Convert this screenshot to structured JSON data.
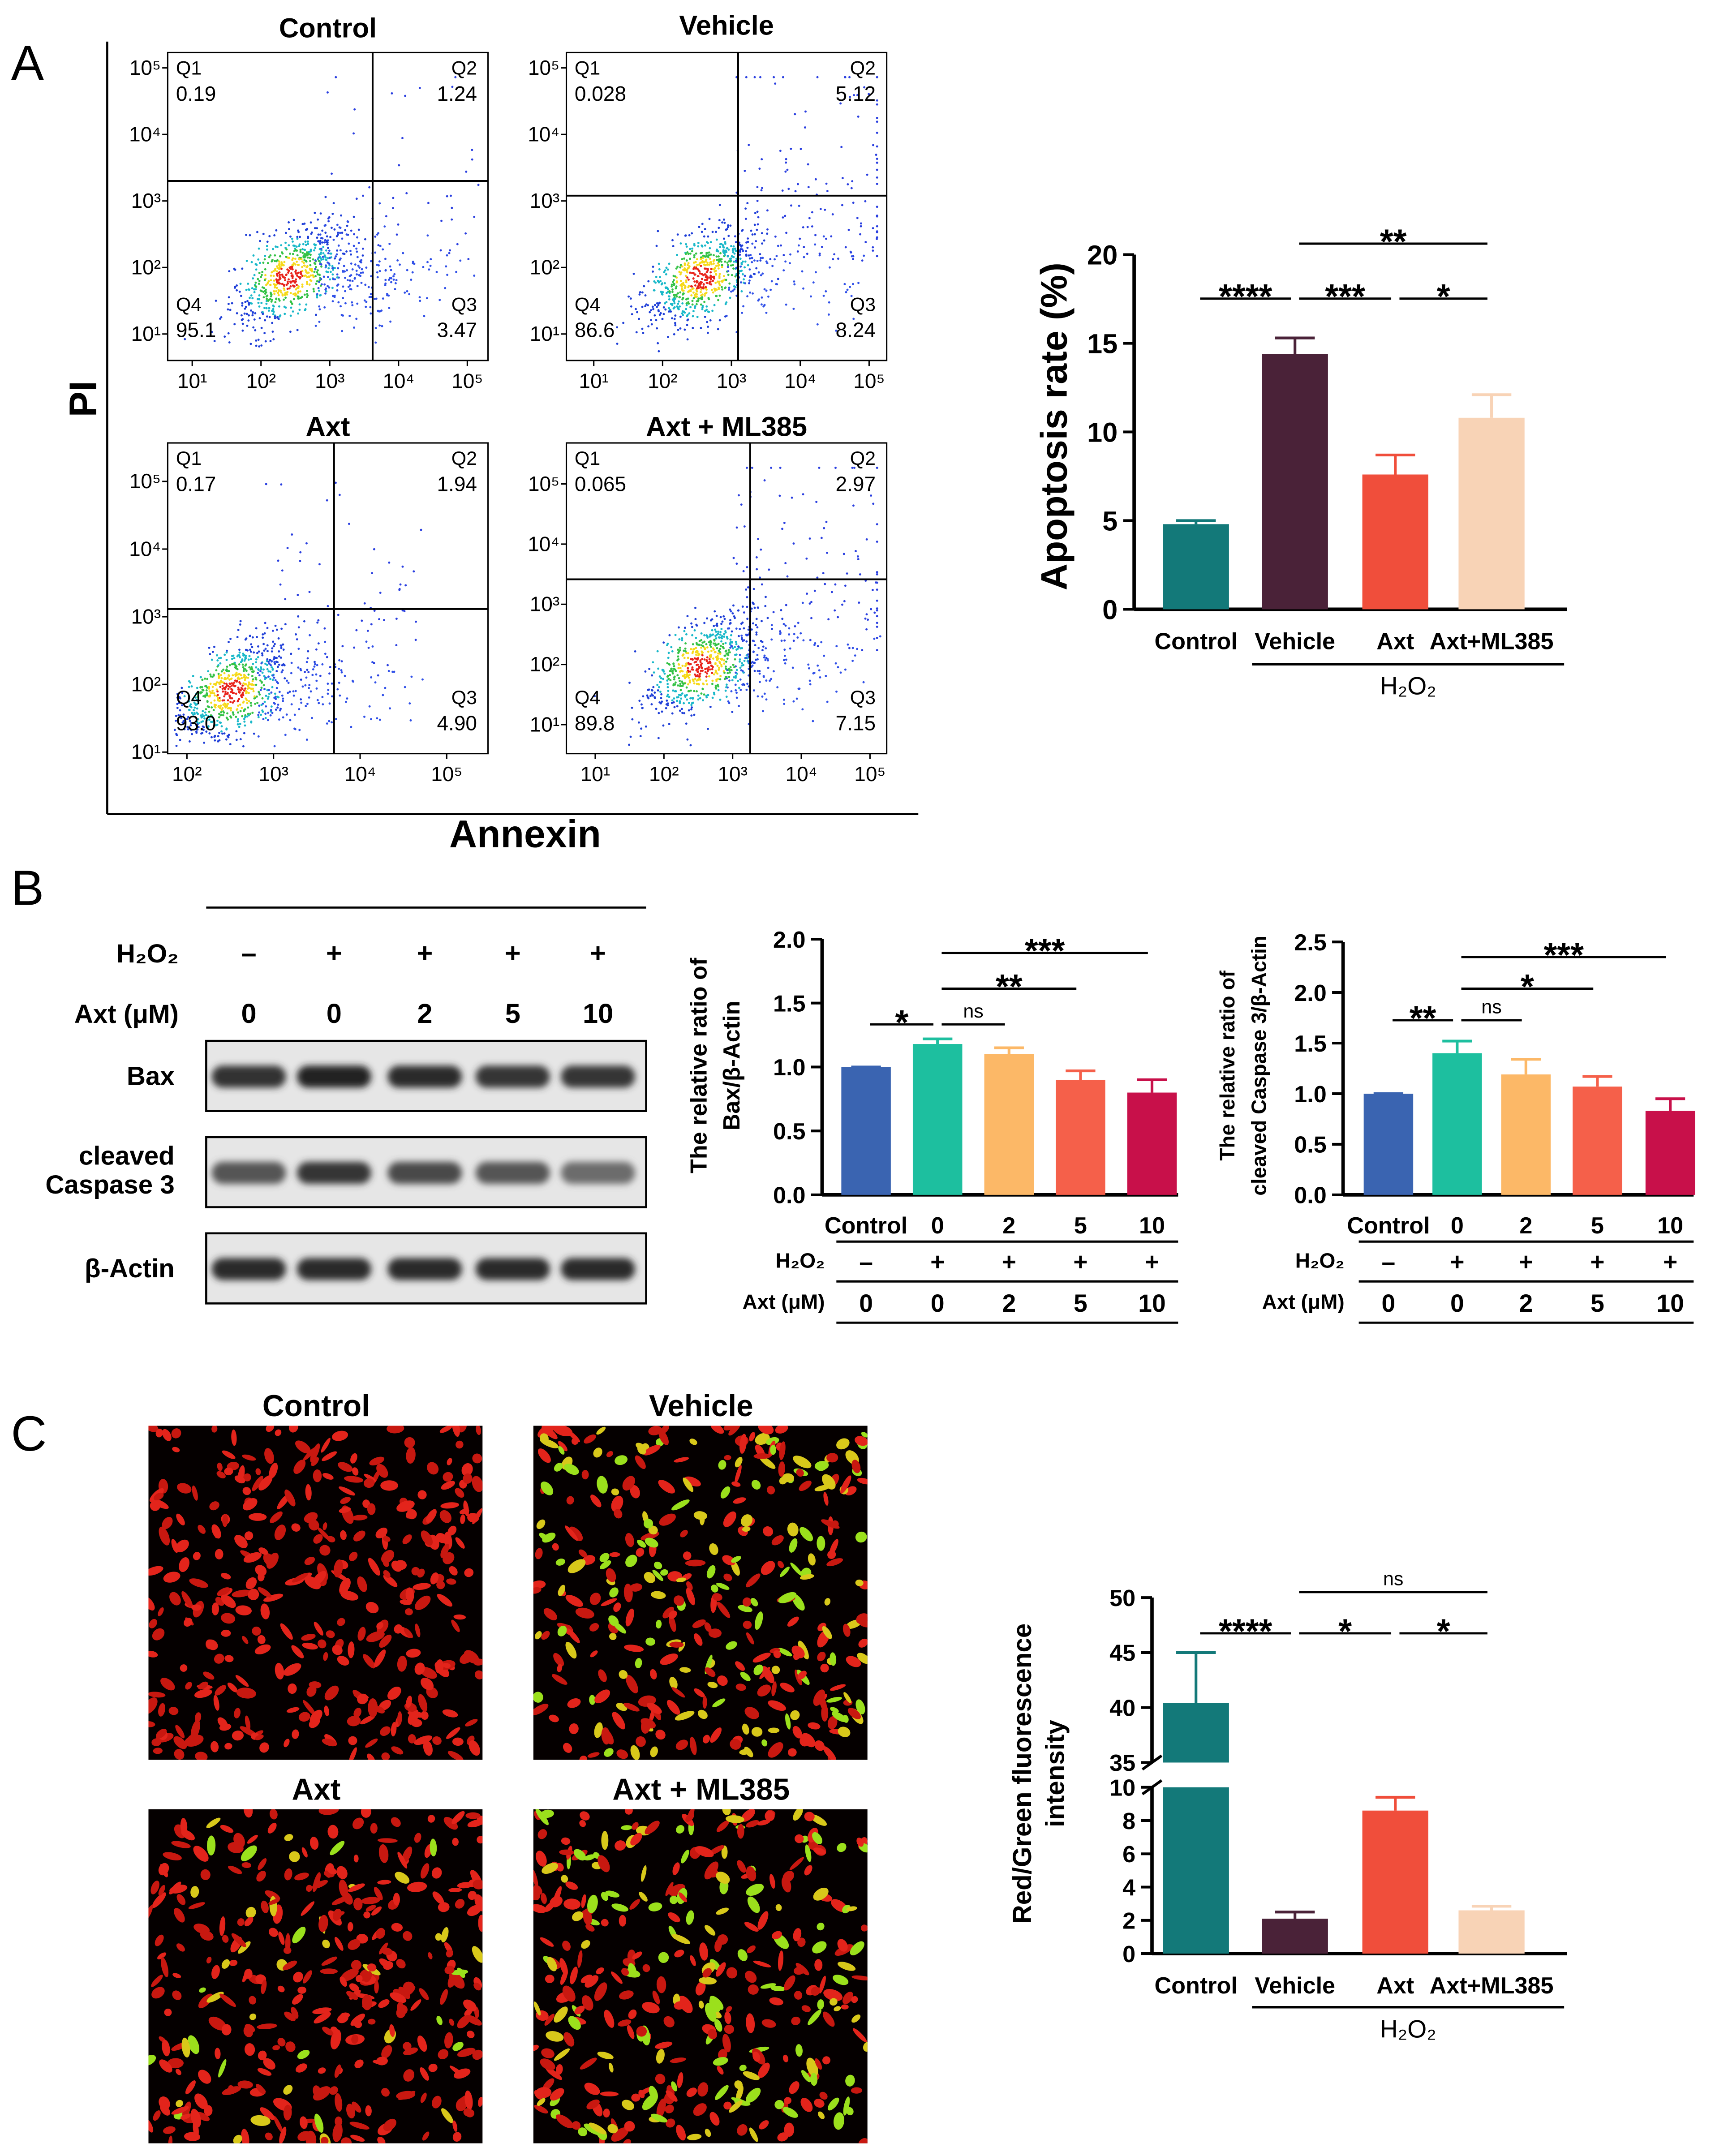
{
  "panels": [
    "A",
    "B",
    "C"
  ],
  "flow": {
    "ylabel": "PI",
    "xlabel": "Annexin",
    "plots": [
      {
        "title": "Control",
        "log": true,
        "xlim": [
          4.4,
          200000
        ],
        "ylim": [
          4,
          170000
        ],
        "xticks": [
          {
            "value": 10,
            "label": "10¹"
          },
          {
            "value": 100,
            "label": "10²"
          },
          {
            "value": 1000,
            "label": "10³"
          },
          {
            "value": 10000,
            "label": "10⁴"
          },
          {
            "value": 100000,
            "label": "10⁵"
          }
        ],
        "yticks": [
          {
            "value": 10,
            "label": "10¹"
          },
          {
            "value": 100,
            "label": "10²"
          },
          {
            "value": 1000,
            "label": "10³"
          },
          {
            "value": 10000,
            "label": "10⁴"
          },
          {
            "value": 100000,
            "label": "10⁵"
          }
        ],
        "gate": [
          4200,
          2000
        ],
        "quadrants": [
          {
            "name": "Q1",
            "value": "0.19"
          },
          {
            "name": "Q2",
            "value": "1.24"
          },
          {
            "name": "Q3",
            "value": "3.47"
          },
          {
            "name": "Q4",
            "value": "95.1"
          }
        ]
      },
      {
        "title": "Vehicle",
        "log": true,
        "xlim": [
          4,
          180000
        ],
        "ylim": [
          4,
          170000
        ],
        "xticks": [
          {
            "value": 10,
            "label": "10¹"
          },
          {
            "value": 100,
            "label": "10²"
          },
          {
            "value": 1000,
            "label": "10³"
          },
          {
            "value": 10000,
            "label": "10⁴"
          },
          {
            "value": 100000,
            "label": "10⁵"
          }
        ],
        "yticks": [
          {
            "value": 10,
            "label": "10¹"
          },
          {
            "value": 100,
            "label": "10²"
          },
          {
            "value": 1000,
            "label": "10³"
          },
          {
            "value": 10000,
            "label": "10⁴"
          },
          {
            "value": 100000,
            "label": "10⁵"
          }
        ],
        "gate": [
          1250,
          1200
        ],
        "quadrants": [
          {
            "name": "Q1",
            "value": "0.028"
          },
          {
            "name": "Q2",
            "value": "5.12"
          },
          {
            "name": "Q3",
            "value": "8.24"
          },
          {
            "name": "Q4",
            "value": "86.6"
          }
        ]
      },
      {
        "title": "Axt",
        "log": true,
        "xlim": [
          60,
          300000
        ],
        "ylim": [
          9.5,
          370000
        ],
        "xticks": [
          {
            "value": 100,
            "label": "10²"
          },
          {
            "value": 1000,
            "label": "10³"
          },
          {
            "value": 10000,
            "label": "10⁴"
          },
          {
            "value": 100000,
            "label": "10⁵"
          }
        ],
        "yticks": [
          {
            "value": 10,
            "label": "10¹"
          },
          {
            "value": 100,
            "label": "10²"
          },
          {
            "value": 1000,
            "label": "10³"
          },
          {
            "value": 10000,
            "label": "10⁴"
          },
          {
            "value": 100000,
            "label": "10⁵"
          }
        ],
        "gate": [
          5000,
          1300
        ],
        "quadrants": [
          {
            "name": "Q1",
            "value": "0.17"
          },
          {
            "name": "Q2",
            "value": "1.94"
          },
          {
            "name": "Q3",
            "value": "4.90"
          },
          {
            "name": "Q4",
            "value": "93.0"
          }
        ]
      },
      {
        "title": "Axt + ML385",
        "log": true,
        "xlim": [
          3.8,
          175000
        ],
        "ylim": [
          3.3,
          480000
        ],
        "xticks": [
          {
            "value": 10,
            "label": "10¹"
          },
          {
            "value": 100,
            "label": "10²"
          },
          {
            "value": 1000,
            "label": "10³"
          },
          {
            "value": 10000,
            "label": "10⁴"
          },
          {
            "value": 100000,
            "label": "10⁵"
          }
        ],
        "yticks": [
          {
            "value": 10,
            "label": "10¹"
          },
          {
            "value": 100,
            "label": "10²"
          },
          {
            "value": 1000,
            "label": "10³"
          },
          {
            "value": 10000,
            "label": "10⁴"
          },
          {
            "value": 100000,
            "label": "10⁵"
          }
        ],
        "gate": [
          1800,
          2600
        ],
        "quadrants": [
          {
            "name": "Q1",
            "value": "0.065"
          },
          {
            "name": "Q2",
            "value": "2.97"
          },
          {
            "name": "Q3",
            "value": "7.15"
          },
          {
            "name": "Q4",
            "value": "89.8"
          }
        ]
      }
    ]
  },
  "western": {
    "rows": [
      {
        "label": "H₂O₂",
        "values": [
          "–",
          "+",
          "+",
          "+",
          "+"
        ]
      },
      {
        "label": "Axt (μM)",
        "values": [
          "0",
          "0",
          "2",
          "5",
          "10"
        ]
      }
    ],
    "bands": [
      [
        "Bax"
      ],
      [
        "cleaved",
        "Caspase 3"
      ],
      [
        "β-Actin"
      ]
    ]
  },
  "images": {
    "titles": [
      "Control",
      "Vehicle",
      "Axt",
      "Axt + ML385"
    ]
  },
  "chart_data": [
    {
      "type": "bar",
      "ylabel": "Apoptosis  rate (%)",
      "categories": [
        "Control",
        "Vehicle",
        "Axt",
        "Axt+ML385"
      ],
      "values": [
        4.8,
        14.4,
        7.6,
        10.8
      ],
      "errors": [
        0.2,
        0.9,
        1.1,
        1.3
      ],
      "colors": [
        "#137979",
        "#4a2238",
        "#f04e3b",
        "#f8d3b6"
      ],
      "ylim": [
        0,
        20
      ],
      "yticks": [
        0,
        5,
        10,
        15,
        20
      ],
      "comparisons": [
        {
          "groups": [
            "Control",
            "Vehicle"
          ],
          "label": "****"
        },
        {
          "groups": [
            "Vehicle",
            "Axt"
          ],
          "label": "***"
        },
        {
          "groups": [
            "Axt",
            "Axt+ML385"
          ],
          "label": "*"
        },
        {
          "groups": [
            "Vehicle",
            "Axt+ML385"
          ],
          "label": "**"
        }
      ],
      "group": {
        "label": "H₂O₂",
        "categories": [
          "Vehicle",
          "Axt+ML385"
        ]
      }
    },
    {
      "type": "bar",
      "ylabel": [
        "The relative ratio of",
        "Bax/β-Actin"
      ],
      "categories": [
        "Control",
        "0",
        "2",
        "5",
        "10"
      ],
      "values": [
        1.0,
        1.18,
        1.1,
        0.9,
        0.8
      ],
      "errors": [
        0,
        0.04,
        0.05,
        0.07,
        0.1
      ],
      "colors": [
        "#3a64b1",
        "#1dbf9f",
        "#fcb867",
        "#f5604a",
        "#c8104a"
      ],
      "ylim": [
        0,
        2
      ],
      "yticks": [
        {
          "value": 0,
          "label": "0.0"
        },
        {
          "value": 0.5,
          "label": "0.5"
        },
        {
          "value": 1,
          "label": "1.0"
        },
        {
          "value": 1.5,
          "label": "1.5"
        },
        {
          "value": 2,
          "label": "2.0"
        }
      ],
      "comparisons": [
        {
          "groups": [
            "Control",
            "0"
          ],
          "label": "*"
        },
        {
          "groups": [
            "0",
            "2"
          ],
          "label": "ns"
        },
        {
          "groups": [
            "0",
            "5"
          ],
          "label": "**"
        },
        {
          "groups": [
            "0",
            "10"
          ],
          "label": "***"
        }
      ],
      "table": [
        {
          "label": "H₂O₂",
          "values": [
            "–",
            "+",
            "+",
            "+",
            "+"
          ]
        },
        {
          "label": "Axt (μM)",
          "values": [
            "0",
            "0",
            "2",
            "5",
            "10"
          ]
        }
      ]
    },
    {
      "type": "bar",
      "ylabel": [
        "The relative ratio of",
        "cleaved Caspase 3/β-Actin"
      ],
      "categories": [
        "Control",
        "0",
        "2",
        "5",
        "10"
      ],
      "values": [
        1.0,
        1.4,
        1.19,
        1.07,
        0.83
      ],
      "errors": [
        0,
        0.12,
        0.15,
        0.1,
        0.12
      ],
      "colors": [
        "#3a64b1",
        "#1dbf9f",
        "#fcb867",
        "#f5604a",
        "#c8104a"
      ],
      "ylim": [
        0,
        2.5
      ],
      "yticks": [
        {
          "value": 0,
          "label": "0.0"
        },
        {
          "value": 0.5,
          "label": "0.5"
        },
        {
          "value": 1,
          "label": "1.0"
        },
        {
          "value": 1.5,
          "label": "1.5"
        },
        {
          "value": 2,
          "label": "2.0"
        },
        {
          "value": 2.5,
          "label": "2.5"
        }
      ],
      "comparisons": [
        {
          "groups": [
            "Control",
            "0"
          ],
          "label": "**"
        },
        {
          "groups": [
            "0",
            "2"
          ],
          "label": "ns"
        },
        {
          "groups": [
            "0",
            "5"
          ],
          "label": "*"
        },
        {
          "groups": [
            "0",
            "10"
          ],
          "label": "***"
        }
      ],
      "table": [
        {
          "label": "H₂O₂",
          "values": [
            "–",
            "+",
            "+",
            "+",
            "+"
          ]
        },
        {
          "label": "Axt (μM)",
          "values": [
            "0",
            "0",
            "2",
            "5",
            "10"
          ]
        }
      ]
    },
    {
      "type": "bar",
      "ylabel": [
        "Red/Green fluorescence",
        "intensity"
      ],
      "categories": [
        "Control",
        "Vehicle",
        "Axt",
        "Axt+ML385"
      ],
      "values": [
        40.4,
        2.1,
        8.6,
        2.6
      ],
      "errors": [
        4.6,
        0.4,
        0.8,
        0.25
      ],
      "colors": [
        "#137979",
        "#4a2238",
        "#f04e3b",
        "#f8d3b6"
      ],
      "ylim": [
        0,
        50
      ],
      "ybreak": [
        10,
        35
      ],
      "yticks": [
        0,
        2,
        4,
        6,
        8,
        10,
        35,
        40,
        45,
        50
      ],
      "comparisons": [
        {
          "groups": [
            "Control",
            "Vehicle"
          ],
          "label": "****"
        },
        {
          "groups": [
            "Vehicle",
            "Axt"
          ],
          "label": "*"
        },
        {
          "groups": [
            "Axt",
            "Axt+ML385"
          ],
          "label": "*"
        },
        {
          "groups": [
            "Vehicle",
            "Axt+ML385"
          ],
          "label": "ns"
        }
      ],
      "group": {
        "label": "H₂O₂",
        "categories": [
          "Vehicle",
          "Axt+ML385"
        ]
      }
    }
  ]
}
